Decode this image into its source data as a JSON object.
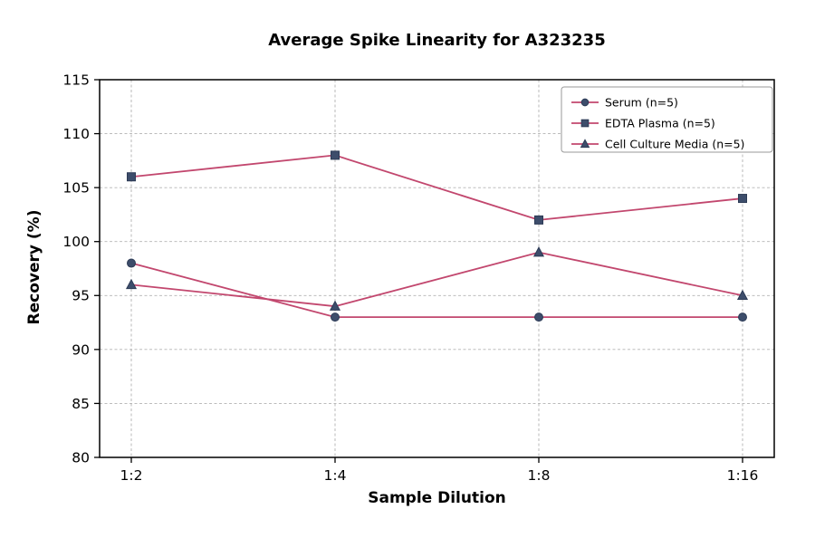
{
  "chart_data": {
    "type": "line",
    "title": "Average Spike Linearity for A323235",
    "xlabel": "Sample Dilution",
    "ylabel": "Recovery (%)",
    "categories": [
      "1:2",
      "1:4",
      "1:8",
      "1:16"
    ],
    "series": [
      {
        "name": "Serum (n=5)",
        "marker": "circle",
        "values": [
          98,
          93,
          93,
          93
        ]
      },
      {
        "name": "EDTA Plasma (n=5)",
        "marker": "square",
        "values": [
          106,
          108,
          102,
          104
        ]
      },
      {
        "name": "Cell Culture Media (n=5)",
        "marker": "triangle",
        "values": [
          96,
          94,
          99,
          95
        ]
      }
    ],
    "ylim": [
      80,
      115
    ],
    "yticks": [
      80,
      85,
      90,
      95,
      100,
      105,
      110,
      115
    ],
    "grid": true,
    "grid_style": "dashed",
    "legend_position": "upper right",
    "line_color": "#c2476e",
    "marker_color": "#3d4d6b",
    "marker_edge": "#2c3a55",
    "grid_color": "#b3b3b3",
    "axis_color": "#000000",
    "background": "#ffffff"
  }
}
